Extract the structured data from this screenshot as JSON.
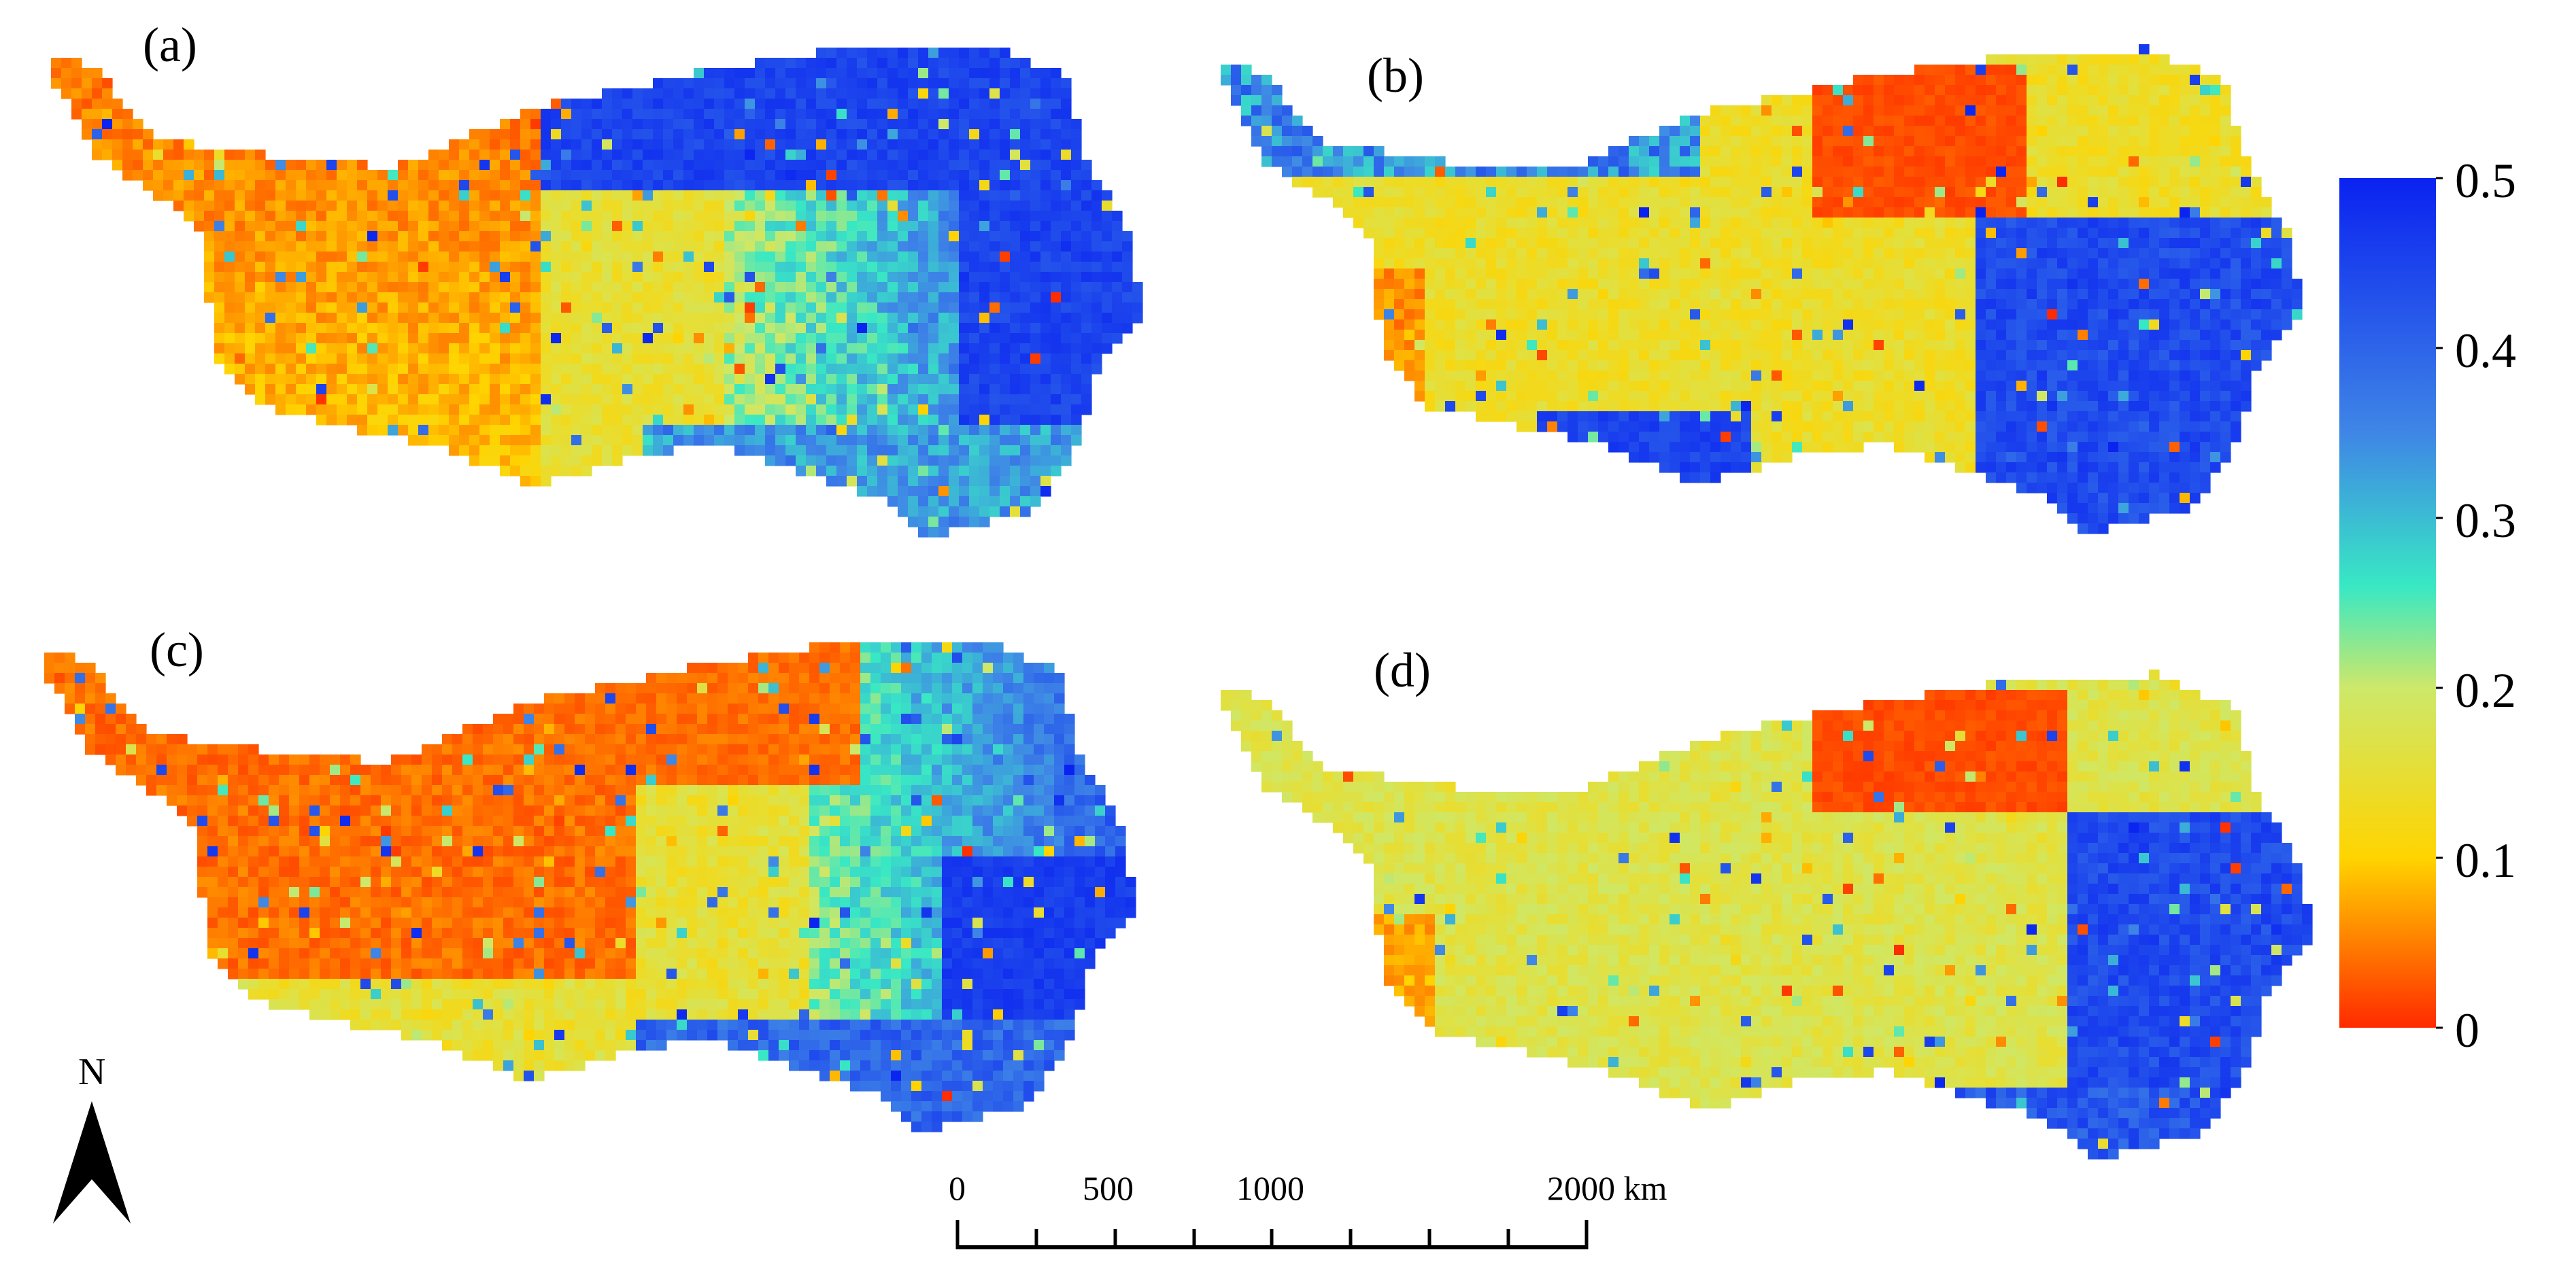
{
  "panels": [
    {
      "id": "a",
      "label": "(a)",
      "scheme": "a"
    },
    {
      "id": "b",
      "label": "(b)",
      "scheme": "b"
    },
    {
      "id": "c",
      "label": "(c)",
      "scheme": "c"
    },
    {
      "id": "d",
      "label": "(d)",
      "scheme": "d"
    }
  ],
  "colorbar": {
    "min": 0,
    "max": 0.5,
    "ticks": [
      "0",
      "0.1",
      "0.2",
      "0.3",
      "0.4",
      "0.5"
    ],
    "stops": [
      "#ff2a00",
      "#ffd400",
      "#cde86a",
      "#38e8c4",
      "#3f86e6",
      "#0a22f0"
    ]
  },
  "north_arrow": {
    "label": "N"
  },
  "scale_bar": {
    "labels": [
      "0",
      "500",
      "1000",
      "2000 km"
    ],
    "values_km": [
      0,
      500,
      1000,
      2000
    ]
  }
}
